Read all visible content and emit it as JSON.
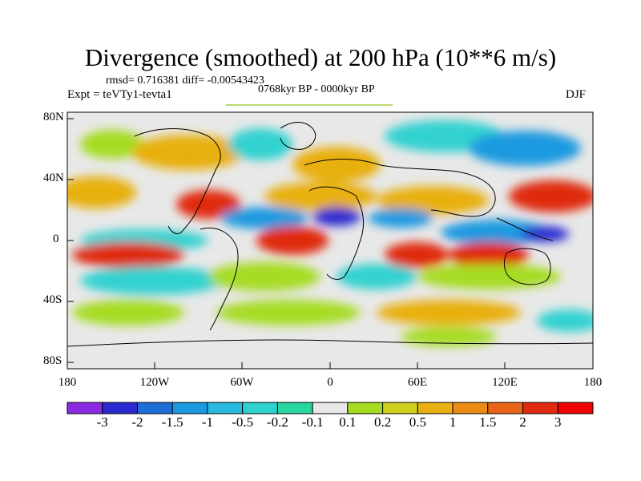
{
  "title": "Divergence (smoothed) at 200 hPa (10**6 m/s)",
  "stats": "rmsd= 0.716381 diff= -0.00543423",
  "experiment": "Expt = teVTy1-tevta1",
  "period": "0768kyr BP - 0000kyr BP",
  "season": "DJF",
  "lat_ticks": [
    "80N",
    "40N",
    "0",
    "40S",
    "80S"
  ],
  "lon_ticks": [
    "180",
    "120W",
    "60W",
    "0",
    "60E",
    "120E",
    "180"
  ],
  "colorbar": {
    "labels": [
      "-3",
      "-2",
      "-1.5",
      "-1",
      "-0.5",
      "-0.2",
      "-0.1",
      "0.1",
      "0.2",
      "0.5",
      "1",
      "1.5",
      "2",
      "3"
    ],
    "colors": [
      "#8a2be2",
      "#2a2ad0",
      "#1e6ed8",
      "#1c9ae0",
      "#28b8e0",
      "#30d2d0",
      "#28d6a0",
      "#e8e8e8",
      "#a6dc20",
      "#d0d020",
      "#e8b010",
      "#ec8a16",
      "#ea6418",
      "#e02a10",
      "#f00000"
    ]
  },
  "map_colors": {
    "neutral": "#e8e8e8",
    "strong_negative": "#2a2ad0",
    "negative": "#1c9ae0",
    "weak_negative": "#30d2d0",
    "weak_positive": "#a6dc20",
    "positive": "#e8b010",
    "strong_positive": "#e02a10"
  },
  "icon": "world-map-coastlines"
}
